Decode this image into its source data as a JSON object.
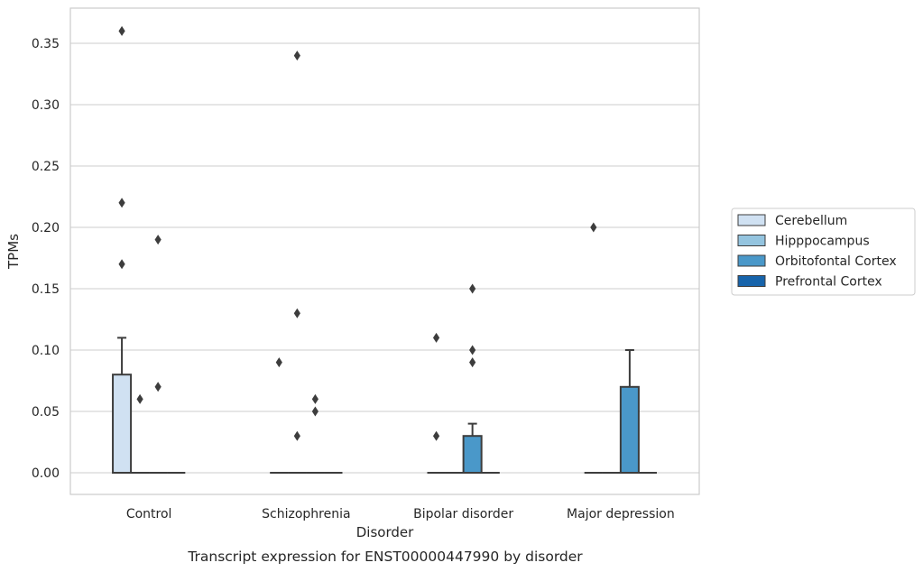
{
  "chart_data": {
    "type": "box",
    "title": "",
    "caption": "Transcript expression for ENST00000447990 by disorder",
    "xlabel": "Disorder",
    "ylabel": "TPMs",
    "ylim": [
      -0.018,
      0.378
    ],
    "yticks": [
      0.0,
      0.05,
      0.1,
      0.15,
      0.2,
      0.25,
      0.3,
      0.35
    ],
    "ytick_labels": [
      "0.00",
      "0.05",
      "0.10",
      "0.15",
      "0.20",
      "0.25",
      "0.30",
      "0.35"
    ],
    "grid": "horizontal",
    "legend_position": "right",
    "categories": [
      "Control",
      "Schizophrenia",
      "Bipolar disorder",
      "Major depression"
    ],
    "series": [
      {
        "name": "Cerebellum",
        "color": "#d0e1f2",
        "boxes": [
          {
            "category": "Control",
            "q1": 0.0,
            "median": 0.0,
            "q3": 0.08,
            "whisker_low": 0.0,
            "whisker_high": 0.11,
            "outliers": [
              0.36,
              0.22,
              0.17
            ]
          },
          {
            "category": "Schizophrenia",
            "q1": 0.0,
            "median": 0.0,
            "q3": 0.0,
            "whisker_low": 0.0,
            "whisker_high": 0.0,
            "outliers": [
              0.09
            ]
          },
          {
            "category": "Bipolar disorder",
            "q1": 0.0,
            "median": 0.0,
            "q3": 0.0,
            "whisker_low": 0.0,
            "whisker_high": 0.0,
            "outliers": [
              0.11,
              0.03
            ]
          },
          {
            "category": "Major depression",
            "q1": 0.0,
            "median": 0.0,
            "q3": 0.0,
            "whisker_low": 0.0,
            "whisker_high": 0.0,
            "outliers": [
              0.2
            ]
          }
        ]
      },
      {
        "name": "Hipppocampus",
        "color": "#94c4df",
        "boxes": [
          {
            "category": "Control",
            "q1": 0.0,
            "median": 0.0,
            "q3": 0.0,
            "whisker_low": 0.0,
            "whisker_high": 0.0,
            "outliers": [
              0.06
            ]
          },
          {
            "category": "Schizophrenia",
            "q1": 0.0,
            "median": 0.0,
            "q3": 0.0,
            "whisker_low": 0.0,
            "whisker_high": 0.0,
            "outliers": [
              0.34,
              0.13,
              0.03
            ]
          },
          {
            "category": "Bipolar disorder",
            "q1": 0.0,
            "median": 0.0,
            "q3": 0.0,
            "whisker_low": 0.0,
            "whisker_high": 0.0,
            "outliers": []
          },
          {
            "category": "Major depression",
            "q1": 0.0,
            "median": 0.0,
            "q3": 0.0,
            "whisker_low": 0.0,
            "whisker_high": 0.0,
            "outliers": []
          }
        ]
      },
      {
        "name": "Orbitofontal Cortex",
        "color": "#4a98c9",
        "boxes": [
          {
            "category": "Control",
            "q1": 0.0,
            "median": 0.0,
            "q3": 0.0,
            "whisker_low": 0.0,
            "whisker_high": 0.0,
            "outliers": [
              0.19,
              0.07
            ]
          },
          {
            "category": "Schizophrenia",
            "q1": 0.0,
            "median": 0.0,
            "q3": 0.0,
            "whisker_low": 0.0,
            "whisker_high": 0.0,
            "outliers": [
              0.06,
              0.05
            ]
          },
          {
            "category": "Bipolar disorder",
            "q1": 0.0,
            "median": 0.0,
            "q3": 0.03,
            "whisker_low": 0.0,
            "whisker_high": 0.04,
            "outliers": [
              0.15,
              0.1,
              0.09
            ]
          },
          {
            "category": "Major depression",
            "q1": 0.0,
            "median": 0.0,
            "q3": 0.07,
            "whisker_low": 0.0,
            "whisker_high": 0.1,
            "outliers": []
          }
        ]
      },
      {
        "name": "Prefrontal Cortex",
        "color": "#1764ab",
        "boxes": [
          {
            "category": "Control",
            "q1": 0.0,
            "median": 0.0,
            "q3": 0.0,
            "whisker_low": 0.0,
            "whisker_high": 0.0,
            "outliers": []
          },
          {
            "category": "Schizophrenia",
            "q1": 0.0,
            "median": 0.0,
            "q3": 0.0,
            "whisker_low": 0.0,
            "whisker_high": 0.0,
            "outliers": []
          },
          {
            "category": "Bipolar disorder",
            "q1": 0.0,
            "median": 0.0,
            "q3": 0.0,
            "whisker_low": 0.0,
            "whisker_high": 0.0,
            "outliers": []
          },
          {
            "category": "Major depression",
            "q1": 0.0,
            "median": 0.0,
            "q3": 0.0,
            "whisker_low": 0.0,
            "whisker_high": 0.0,
            "outliers": []
          }
        ]
      }
    ]
  }
}
